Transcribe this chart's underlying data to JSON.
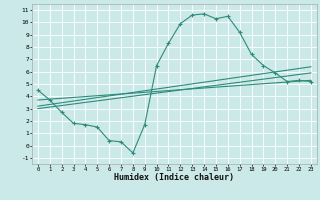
{
  "xlabel": "Humidex (Indice chaleur)",
  "background_color": "#cce9e9",
  "grid_color": "#ffffff",
  "line_color": "#2d8b7a",
  "xlim": [
    -0.5,
    23.5
  ],
  "ylim": [
    -1.5,
    11.5
  ],
  "xticks": [
    0,
    1,
    2,
    3,
    4,
    5,
    6,
    7,
    8,
    9,
    10,
    11,
    12,
    13,
    14,
    15,
    16,
    17,
    18,
    19,
    20,
    21,
    22,
    23
  ],
  "yticks": [
    -1,
    0,
    1,
    2,
    3,
    4,
    5,
    6,
    7,
    8,
    9,
    10,
    11
  ],
  "line1_x": [
    0,
    1,
    2,
    3,
    4,
    5,
    6,
    7,
    8,
    9,
    10,
    11,
    12,
    13,
    14,
    15,
    16,
    17,
    18,
    19,
    20,
    21,
    22,
    23
  ],
  "line1_y": [
    4.5,
    3.7,
    2.7,
    1.8,
    1.7,
    1.5,
    0.4,
    0.3,
    -0.6,
    1.7,
    6.5,
    8.3,
    9.9,
    10.6,
    10.7,
    10.3,
    10.5,
    9.2,
    7.4,
    6.5,
    5.9,
    5.2,
    5.3,
    5.2
  ],
  "line2_x": [
    0,
    23
  ],
  "line2_y": [
    3.2,
    6.4
  ],
  "line3_x": [
    0,
    23
  ],
  "line3_y": [
    3.7,
    5.3
  ],
  "line4_x": [
    0,
    23
  ],
  "line4_y": [
    3.0,
    5.9
  ]
}
